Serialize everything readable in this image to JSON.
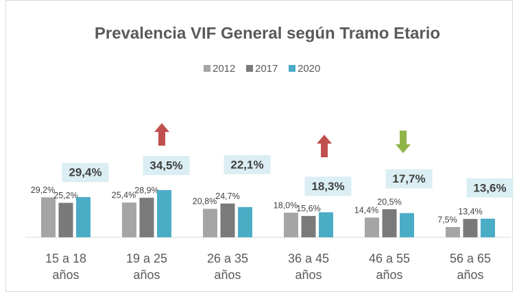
{
  "chart_data": {
    "type": "bar",
    "title": "Prevalencia VIF General según Tramo Etario",
    "categories": [
      "15 a 18 años",
      "19 a 25 años",
      "26 a 35 años",
      "36 a 45 años",
      "46 a 55 años",
      "56 a 65 años"
    ],
    "series": [
      {
        "name": "2012",
        "color": "#a5a5a5",
        "values": [
          29.2,
          25.4,
          20.8,
          18.0,
          14.4,
          7.5
        ],
        "value_labels": [
          "29,2%",
          "25,4%",
          "20,8%",
          "18,0%",
          "14,4%",
          "7,5%"
        ]
      },
      {
        "name": "2017",
        "color": "#7a7a7a",
        "values": [
          25.2,
          28.9,
          24.7,
          15.6,
          20.5,
          13.4
        ],
        "value_labels": [
          "25,2%",
          "28,9%",
          "24,7%",
          "15,6%",
          "20,5%",
          "13,4%"
        ]
      },
      {
        "name": "2020",
        "color": "#4bacc6",
        "values": [
          29.4,
          34.5,
          22.1,
          18.3,
          17.7,
          13.6
        ],
        "value_labels": [
          "29,4%",
          "34,5%",
          "22,1%",
          "18,3%",
          "17,7%",
          "13,6%"
        ]
      }
    ],
    "ylim": [
      0,
      100
    ],
    "legend": "top"
  }
}
